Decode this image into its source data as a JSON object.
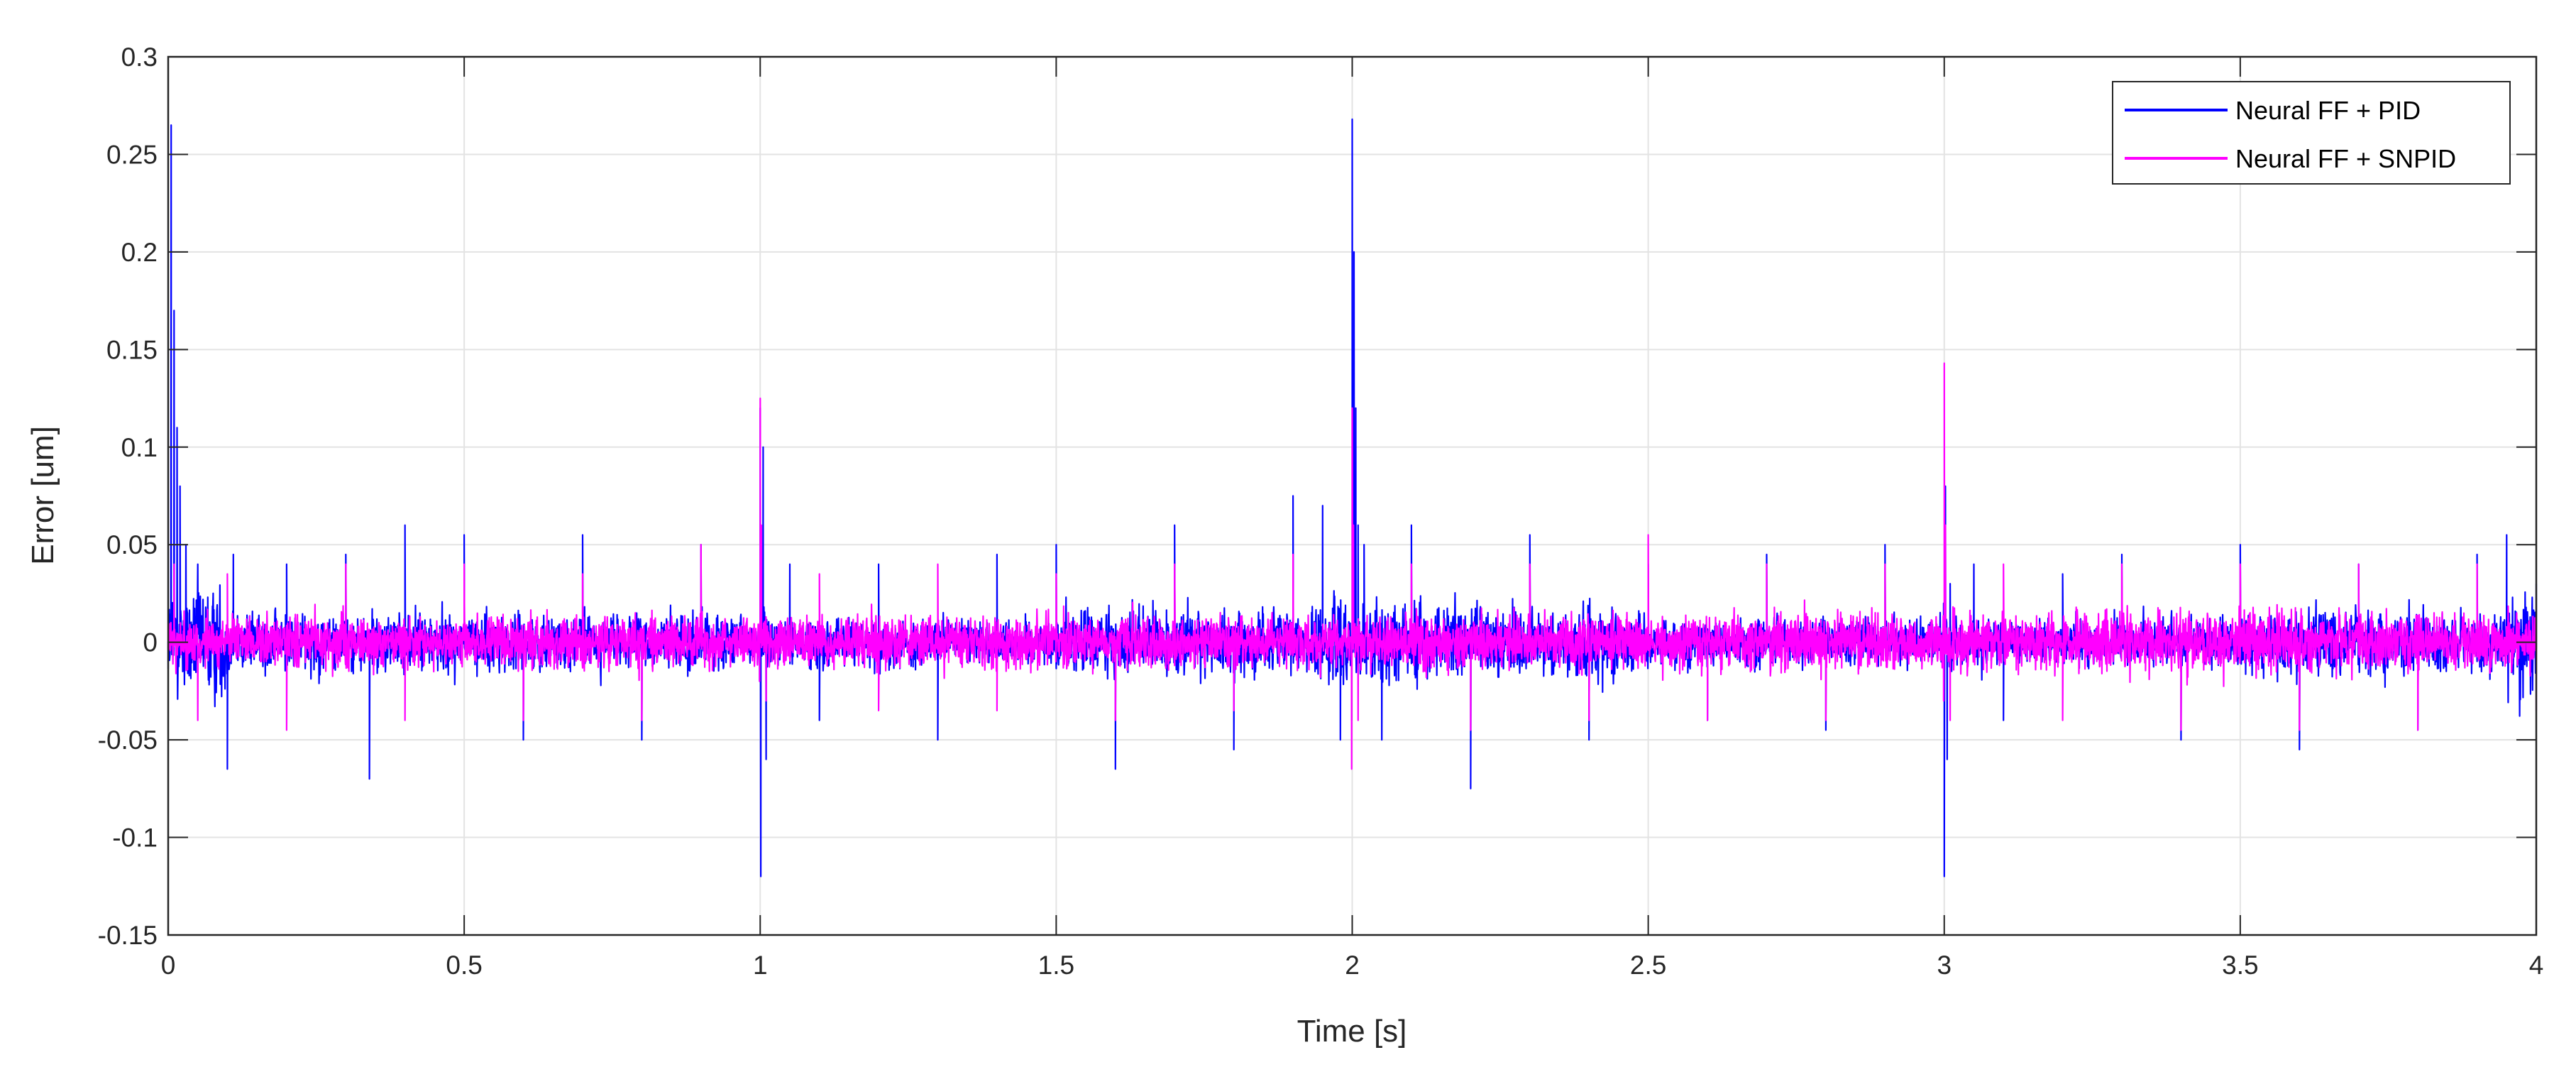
{
  "chart_data": {
    "type": "line",
    "title": "",
    "xlabel": "Time [s]",
    "ylabel": "Error [um]",
    "xlim": [
      0,
      4
    ],
    "ylim": [
      -0.15,
      0.3
    ],
    "x_ticks": [
      "0",
      "0.5",
      "1",
      "1.5",
      "2",
      "2.5",
      "3",
      "3.5",
      "4"
    ],
    "x_tick_values": [
      0,
      0.5,
      1,
      1.5,
      2,
      2.5,
      3,
      3.5,
      4
    ],
    "y_ticks": [
      "-0.15",
      "-0.1",
      "-0.05",
      "0",
      "0.05",
      "0.1",
      "0.15",
      "0.2",
      "0.25",
      "0.3"
    ],
    "y_tick_values": [
      -0.15,
      -0.1,
      -0.05,
      0,
      0.05,
      0.1,
      0.15,
      0.2,
      0.25,
      0.3
    ],
    "grid": true,
    "legend_position": "top-right",
    "series": [
      {
        "name": "Neural FF + PID",
        "color": "#0000ff",
        "x": [
          0,
          0.005,
          0.01,
          0.015,
          0.02,
          0.03,
          0.05,
          0.1,
          0.11,
          0.2,
          0.3,
          0.34,
          0.4,
          0.5,
          0.6,
          0.7,
          0.8,
          0.9,
          0.999,
          1.0,
          1.001,
          1.005,
          1.01,
          1.05,
          1.1,
          1.2,
          1.3,
          1.4,
          1.5,
          1.6,
          1.7,
          1.8,
          1.9,
          1.95,
          1.98,
          1.999,
          2.0,
          2.003,
          2.006,
          2.01,
          2.02,
          2.05,
          2.1,
          2.2,
          2.3,
          2.4,
          2.5,
          2.6,
          2.7,
          2.8,
          2.9,
          2.999,
          3.0,
          3.002,
          3.005,
          3.01,
          3.05,
          3.1,
          3.2,
          3.3,
          3.4,
          3.5,
          3.6,
          3.7,
          3.8,
          3.9,
          3.95,
          4.0
        ],
        "y": [
          0.0,
          0.265,
          0.17,
          0.11,
          0.08,
          0.05,
          0.04,
          -0.065,
          0.045,
          0.04,
          0.045,
          -0.07,
          0.06,
          0.055,
          -0.05,
          0.055,
          -0.05,
          0.05,
          -0.02,
          0.12,
          -0.12,
          0.1,
          -0.06,
          0.04,
          -0.04,
          0.04,
          -0.05,
          0.045,
          0.05,
          -0.065,
          0.06,
          -0.055,
          0.075,
          0.07,
          -0.05,
          -0.04,
          0.268,
          0.2,
          0.12,
          0.06,
          0.05,
          -0.05,
          0.06,
          -0.075,
          0.055,
          -0.05,
          0.04,
          -0.04,
          0.045,
          -0.045,
          0.05,
          0.02,
          -0.12,
          0.08,
          -0.06,
          0.03,
          0.04,
          -0.04,
          0.035,
          0.045,
          -0.05,
          0.05,
          -0.055,
          0.04,
          -0.045,
          0.045,
          0.055,
          0.03
        ]
      },
      {
        "name": "Neural FF + SNPID",
        "color": "#ff00ff",
        "x": [
          0,
          0.01,
          0.05,
          0.1,
          0.2,
          0.3,
          0.4,
          0.5,
          0.6,
          0.7,
          0.8,
          0.9,
          0.999,
          1.0,
          1.002,
          1.01,
          1.1,
          1.2,
          1.3,
          1.4,
          1.5,
          1.6,
          1.7,
          1.8,
          1.9,
          1.999,
          2.0,
          2.002,
          2.01,
          2.1,
          2.2,
          2.3,
          2.4,
          2.5,
          2.6,
          2.7,
          2.8,
          2.9,
          2.999,
          3.0,
          3.002,
          3.01,
          3.1,
          3.2,
          3.3,
          3.4,
          3.5,
          3.6,
          3.7,
          3.8,
          3.9,
          4.0
        ],
        "y": [
          0.0,
          0.04,
          -0.04,
          0.035,
          -0.045,
          0.04,
          -0.04,
          0.04,
          -0.04,
          0.035,
          -0.04,
          0.05,
          -0.02,
          0.125,
          0.06,
          -0.03,
          0.035,
          -0.035,
          0.04,
          -0.035,
          0.035,
          -0.04,
          0.04,
          -0.035,
          0.045,
          -0.065,
          0.12,
          0.06,
          -0.04,
          0.04,
          -0.045,
          0.04,
          -0.04,
          0.055,
          -0.04,
          0.04,
          -0.04,
          0.04,
          -0.03,
          0.143,
          0.06,
          -0.04,
          0.04,
          -0.04,
          0.04,
          -0.045,
          0.04,
          -0.045,
          0.04,
          -0.045,
          0.04,
          -0.035
        ]
      }
    ]
  },
  "noise": {
    "pid": [
      [
        0.0,
        0.1,
        0.025
      ],
      [
        0.1,
        0.5,
        0.014
      ],
      [
        0.5,
        0.99,
        0.013
      ],
      [
        1.01,
        1.5,
        0.011
      ],
      [
        1.5,
        1.95,
        0.016
      ],
      [
        1.95,
        1.995,
        0.022
      ],
      [
        2.01,
        2.5,
        0.017
      ],
      [
        2.5,
        2.99,
        0.011
      ],
      [
        3.01,
        3.5,
        0.011
      ],
      [
        3.5,
        3.95,
        0.014
      ],
      [
        3.95,
        4.0,
        0.022
      ]
    ],
    "snpid": [
      [
        0.0,
        0.99,
        0.012
      ],
      [
        1.01,
        1.99,
        0.012
      ],
      [
        2.01,
        2.99,
        0.013
      ],
      [
        3.01,
        4.0,
        0.014
      ]
    ]
  }
}
